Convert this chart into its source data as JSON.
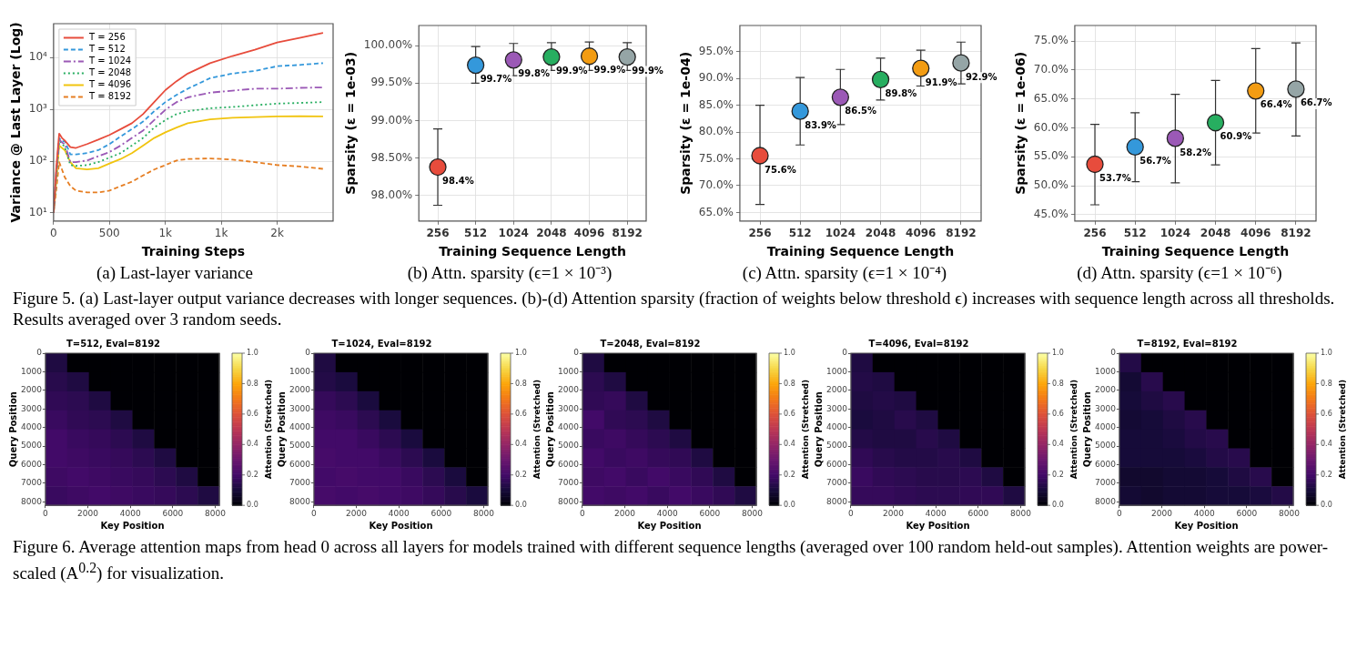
{
  "chart_data": [
    {
      "type": "line",
      "xlabel": "Training Steps",
      "ylabel": "Variance @ Last Layer (Log)",
      "log": "y",
      "grid": true,
      "legend": "top left",
      "annotations": [
        "(a) Last-layer variance"
      ],
      "x": [
        0,
        25,
        50,
        75,
        100,
        150,
        200,
        300,
        400,
        500,
        600,
        700,
        800,
        900,
        1000,
        1100,
        1200,
        1400,
        1600,
        1800,
        2000,
        2200,
        2410
      ],
      "xlim": [
        0,
        2500
      ],
      "xticks": [
        0,
        500,
        {
          "value": 1000,
          "label": "1k"
        },
        {
          "value": 1500,
          "label": "1k"
        },
        {
          "value": 2000,
          "label": "2k"
        }
      ],
      "ylim": [
        7,
        45000
      ],
      "yticks": [
        {
          "value": 10,
          "label": "10¹"
        },
        {
          "value": 100,
          "label": "10²"
        },
        {
          "value": 1000,
          "label": "10³"
        },
        {
          "value": 10000,
          "label": "10⁴"
        }
      ],
      "series": [
        {
          "name": "T = 256",
          "color": "#e74c3c",
          "line_style": "solid",
          "values": [
            10,
            80,
            340,
            280,
            250,
            187,
            180,
            214,
            260,
            320,
            415,
            540,
            810,
            1380,
            2350,
            3500,
            4900,
            7800,
            10700,
            14100,
            19500,
            24000,
            30000
          ]
        },
        {
          "name": "T = 512",
          "color": "#3498db",
          "line_style": "dashed",
          "values": [
            10,
            70,
            280,
            240,
            245,
            135,
            135,
            143,
            163,
            214,
            300,
            415,
            580,
            920,
            1380,
            1900,
            2500,
            4000,
            4900,
            5500,
            6800,
            7200,
            7800
          ]
        },
        {
          "name": "T = 1024",
          "color": "#9b59b6",
          "line_style": "dashdot",
          "values": [
            10,
            60,
            260,
            230,
            214,
            96,
            96,
            103,
            125,
            150,
            200,
            280,
            390,
            620,
            980,
            1380,
            1700,
            2100,
            2300,
            2500,
            2500,
            2600,
            2650
          ]
        },
        {
          "name": "T = 2048",
          "color": "#27ae60",
          "line_style": "dotted",
          "values": [
            10,
            50,
            245,
            220,
            187,
            84,
            81,
            84,
            96,
            117,
            143,
            200,
            280,
            445,
            620,
            810,
            920,
            1050,
            1110,
            1200,
            1290,
            1330,
            1380
          ]
        },
        {
          "name": "T = 4096",
          "color": "#f1c40f",
          "line_style": "solid",
          "values": [
            10,
            45,
            200,
            180,
            163,
            96,
            73,
            69,
            73,
            90,
            110,
            143,
            200,
            280,
            360,
            445,
            540,
            640,
            690,
            710,
            730,
            740,
            730
          ]
        },
        {
          "name": "T = 8192",
          "color": "#e67e22",
          "line_style": "dashed",
          "values": [
            10,
            29,
            96,
            69,
            49,
            33,
            27,
            25,
            25,
            27,
            33,
            40,
            53,
            69,
            84,
            103,
            110,
            113,
            107,
            96,
            84,
            79,
            71
          ]
        }
      ]
    },
    {
      "type": "scatter",
      "xlabel": "Training Sequence Length",
      "ylabel": "Sparsity (ε = 1e-03)",
      "grid": true,
      "annotations": [
        "(b) Attn. sparsity (ϵ=1 × 10⁻³)"
      ],
      "categories": [
        "256",
        "512",
        "1024",
        "2048",
        "4096",
        "8192"
      ],
      "ylim": [
        97.66,
        100.27
      ],
      "yticks": [
        {
          "value": 98,
          "label": "98.00%"
        },
        {
          "value": 98.5,
          "label": "98.50%"
        },
        {
          "value": 99,
          "label": "99.00%"
        },
        {
          "value": 99.5,
          "label": "99.50%"
        },
        {
          "value": 100,
          "label": "100.00%"
        }
      ],
      "values": [
        98.38,
        99.74,
        99.81,
        99.85,
        99.86,
        99.85
      ],
      "colors": [
        "#e74c3c",
        "#3498db",
        "#9b59b6",
        "#27ae60",
        "#f39c12",
        "#95a5a6"
      ],
      "errors": [
        [
          97.87,
          98.89
        ],
        [
          99.5,
          99.99
        ],
        [
          99.6,
          100.03
        ],
        [
          99.67,
          100.04
        ],
        [
          99.67,
          100.05
        ],
        [
          99.67,
          100.04
        ]
      ],
      "value_labels": [
        "98.4%",
        "99.7%",
        "99.8%",
        "99.9%",
        "99.9%",
        "99.9%"
      ]
    },
    {
      "type": "scatter",
      "xlabel": "Training Sequence Length",
      "ylabel": "Sparsity (ε = 1e-04)",
      "grid": true,
      "annotations": [
        "(c) Attn. sparsity (ϵ=1 × 10⁻⁴)"
      ],
      "categories": [
        "256",
        "512",
        "1024",
        "2048",
        "4096",
        "8192"
      ],
      "ylim": [
        63.4,
        99.9
      ],
      "yticks": [
        {
          "value": 65,
          "label": "65.0%"
        },
        {
          "value": 70,
          "label": "70.0%"
        },
        {
          "value": 75,
          "label": "75.0%"
        },
        {
          "value": 80,
          "label": "80.0%"
        },
        {
          "value": 85,
          "label": "85.0%"
        },
        {
          "value": 90,
          "label": "90.0%"
        },
        {
          "value": 95,
          "label": "95.0%"
        }
      ],
      "values": [
        75.6,
        83.9,
        86.5,
        89.8,
        91.9,
        92.9
      ],
      "colors": [
        "#e74c3c",
        "#3498db",
        "#9b59b6",
        "#27ae60",
        "#f39c12",
        "#95a5a6"
      ],
      "errors": [
        [
          66.5,
          85
        ],
        [
          77.6,
          90.2
        ],
        [
          81.4,
          91.7
        ],
        [
          86,
          93.8
        ],
        [
          88.6,
          95.3
        ],
        [
          89,
          96.8
        ]
      ],
      "value_labels": [
        "75.6%",
        "83.9%",
        "86.5%",
        "89.8%",
        "91.9%",
        "92.9%"
      ]
    },
    {
      "type": "scatter",
      "xlabel": "Training Sequence Length",
      "ylabel": "Sparsity (ε = 1e-06)",
      "grid": true,
      "annotations": [
        "(d) Attn. sparsity (ϵ=1 × 10⁻⁶)",
        "Figure 5. (a) Last-layer output variance decreases with longer sequences. (b)-(d) Attention sparsity (fraction of weights below threshold ϵ) increases with sequence length across all thresholds. Results averaged over 3 random seeds."
      ],
      "categories": [
        "256",
        "512",
        "1024",
        "2048",
        "4096",
        "8192"
      ],
      "ylim": [
        43.9,
        77.7
      ],
      "yticks": [
        {
          "value": 45,
          "label": "45.0%"
        },
        {
          "value": 50,
          "label": "50.0%"
        },
        {
          "value": 55,
          "label": "55.0%"
        },
        {
          "value": 60,
          "label": "60.0%"
        },
        {
          "value": 65,
          "label": "65.0%"
        },
        {
          "value": 70,
          "label": "70.0%"
        },
        {
          "value": 75,
          "label": "75.0%"
        }
      ],
      "values": [
        53.7,
        56.7,
        58.2,
        60.9,
        66.4,
        66.7
      ],
      "colors": [
        "#e74c3c",
        "#3498db",
        "#9b59b6",
        "#27ae60",
        "#f39c12",
        "#95a5a6"
      ],
      "errors": [
        [
          46.7,
          60.6
        ],
        [
          50.7,
          62.6
        ],
        [
          50.5,
          65.8
        ],
        [
          53.6,
          68.2
        ],
        [
          59.1,
          73.7
        ],
        [
          58.6,
          74.7
        ]
      ],
      "value_labels": [
        "53.7%",
        "56.7%",
        "58.2%",
        "60.9%",
        "66.4%",
        "66.7%"
      ]
    },
    {
      "type": "heatmap",
      "title": "T=512, Eval=8192",
      "xlabel": "Key Position",
      "ylabel": "Query Position",
      "clabel": "Attention (Stretched)",
      "xlim": [
        0,
        8192
      ],
      "xticks": [
        0,
        2000,
        4000,
        6000,
        8000
      ],
      "ylim": [
        8192,
        0
      ],
      "yticks": [
        0,
        1000,
        2000,
        3000,
        4000,
        5000,
        6000,
        7000,
        8000
      ],
      "clim": [
        0,
        1
      ],
      "cticks": [
        {
          "value": 0,
          "label": "0.0"
        },
        {
          "value": 0.2,
          "label": "0.2"
        },
        {
          "value": 0.4,
          "label": "0.4"
        },
        {
          "value": 0.6,
          "label": "0.6"
        },
        {
          "value": 0.8,
          "label": "0.8"
        },
        {
          "value": 1,
          "label": "1.0"
        }
      ],
      "cells": [
        [
          0.12,
          0,
          0,
          0,
          0,
          0,
          0,
          0
        ],
        [
          0.14,
          0.12,
          0,
          0,
          0,
          0,
          0,
          0
        ],
        [
          0.16,
          0.15,
          0.12,
          0,
          0,
          0,
          0,
          0
        ],
        [
          0.18,
          0.16,
          0.15,
          0.12,
          0,
          0,
          0,
          0
        ],
        [
          0.2,
          0.18,
          0.17,
          0.15,
          0.12,
          0,
          0,
          0
        ],
        [
          0.2,
          0.19,
          0.18,
          0.17,
          0.15,
          0.12,
          0,
          0
        ],
        [
          0.19,
          0.2,
          0.19,
          0.18,
          0.17,
          0.15,
          0.12,
          0
        ],
        [
          0.18,
          0.19,
          0.2,
          0.19,
          0.18,
          0.17,
          0.15,
          0.12
        ]
      ]
    },
    {
      "type": "heatmap",
      "title": "T=1024, Eval=8192",
      "xlabel": "Key Position",
      "ylabel": "Query Position",
      "clabel": "Attention (Stretched)",
      "xlim": [
        0,
        8192
      ],
      "xticks": [
        0,
        2000,
        4000,
        6000,
        8000
      ],
      "ylim": [
        8192,
        0
      ],
      "yticks": [
        0,
        1000,
        2000,
        3000,
        4000,
        5000,
        6000,
        7000,
        8000
      ],
      "clim": [
        0,
        1
      ],
      "cticks": [
        {
          "value": 0,
          "label": "0.0"
        },
        {
          "value": 0.2,
          "label": "0.2"
        },
        {
          "value": 0.4,
          "label": "0.4"
        },
        {
          "value": 0.6,
          "label": "0.6"
        },
        {
          "value": 0.8,
          "label": "0.8"
        },
        {
          "value": 1,
          "label": "1.0"
        }
      ],
      "cells": [
        [
          0.12,
          0,
          0,
          0,
          0,
          0,
          0,
          0
        ],
        [
          0.13,
          0.11,
          0,
          0,
          0,
          0,
          0,
          0
        ],
        [
          0.17,
          0.15,
          0.11,
          0,
          0,
          0,
          0,
          0
        ],
        [
          0.19,
          0.18,
          0.15,
          0.11,
          0,
          0,
          0,
          0
        ],
        [
          0.2,
          0.2,
          0.18,
          0.15,
          0.11,
          0,
          0,
          0
        ],
        [
          0.21,
          0.2,
          0.2,
          0.18,
          0.15,
          0.11,
          0,
          0
        ],
        [
          0.2,
          0.21,
          0.2,
          0.2,
          0.18,
          0.15,
          0.11,
          0
        ],
        [
          0.21,
          0.2,
          0.21,
          0.2,
          0.19,
          0.17,
          0.14,
          0.11
        ]
      ]
    },
    {
      "type": "heatmap",
      "title": "T=2048, Eval=8192",
      "xlabel": "Key Position",
      "ylabel": "Query Position",
      "clabel": "Attention (Stretched)",
      "xlim": [
        0,
        8192
      ],
      "xticks": [
        0,
        2000,
        4000,
        6000,
        8000
      ],
      "ylim": [
        8192,
        0
      ],
      "yticks": [
        0,
        1000,
        2000,
        3000,
        4000,
        5000,
        6000,
        7000,
        8000
      ],
      "clim": [
        0,
        1
      ],
      "cticks": [
        {
          "value": 0,
          "label": "0.0"
        },
        {
          "value": 0.2,
          "label": "0.2"
        },
        {
          "value": 0.4,
          "label": "0.4"
        },
        {
          "value": 0.6,
          "label": "0.6"
        },
        {
          "value": 0.8,
          "label": "0.8"
        },
        {
          "value": 1,
          "label": "1.0"
        }
      ],
      "cells": [
        [
          0.12,
          0,
          0,
          0,
          0,
          0,
          0,
          0
        ],
        [
          0.15,
          0.12,
          0,
          0,
          0,
          0,
          0,
          0
        ],
        [
          0.16,
          0.17,
          0.12,
          0,
          0,
          0,
          0,
          0
        ],
        [
          0.2,
          0.16,
          0.15,
          0.12,
          0,
          0,
          0,
          0
        ],
        [
          0.18,
          0.19,
          0.17,
          0.15,
          0.12,
          0,
          0,
          0
        ],
        [
          0.2,
          0.18,
          0.19,
          0.17,
          0.16,
          0.12,
          0,
          0
        ],
        [
          0.19,
          0.2,
          0.18,
          0.2,
          0.18,
          0.16,
          0.12,
          0
        ],
        [
          0.2,
          0.19,
          0.2,
          0.18,
          0.2,
          0.18,
          0.16,
          0.12
        ]
      ]
    },
    {
      "type": "heatmap",
      "title": "T=4096, Eval=8192",
      "xlabel": "Key Position",
      "ylabel": "Query Position",
      "clabel": "Attention (Stretched)",
      "xlim": [
        0,
        8192
      ],
      "xticks": [
        0,
        2000,
        4000,
        6000,
        8000
      ],
      "ylim": [
        8192,
        0
      ],
      "yticks": [
        0,
        1000,
        2000,
        3000,
        4000,
        5000,
        6000,
        7000,
        8000
      ],
      "clim": [
        0,
        1
      ],
      "cticks": [
        {
          "value": 0,
          "label": "0.0"
        },
        {
          "value": 0.2,
          "label": "0.2"
        },
        {
          "value": 0.4,
          "label": "0.4"
        },
        {
          "value": 0.6,
          "label": "0.6"
        },
        {
          "value": 0.8,
          "label": "0.8"
        },
        {
          "value": 1,
          "label": "1.0"
        }
      ],
      "cells": [
        [
          0.12,
          0,
          0,
          0,
          0,
          0,
          0,
          0
        ],
        [
          0.13,
          0.12,
          0,
          0,
          0,
          0,
          0,
          0
        ],
        [
          0.12,
          0.13,
          0.12,
          0,
          0,
          0,
          0,
          0
        ],
        [
          0.11,
          0.12,
          0.14,
          0.12,
          0,
          0,
          0,
          0
        ],
        [
          0.13,
          0.12,
          0.12,
          0.14,
          0.12,
          0,
          0,
          0
        ],
        [
          0.16,
          0.14,
          0.13,
          0.13,
          0.14,
          0.12,
          0,
          0
        ],
        [
          0.18,
          0.16,
          0.15,
          0.14,
          0.14,
          0.15,
          0.12,
          0
        ],
        [
          0.17,
          0.17,
          0.16,
          0.15,
          0.15,
          0.16,
          0.16,
          0.12
        ]
      ]
    },
    {
      "type": "heatmap",
      "title": "T=8192, Eval=8192",
      "xlabel": "Key Position",
      "ylabel": "Query Position",
      "clabel": "Attention (Stretched)",
      "xlim": [
        0,
        8192
      ],
      "xticks": [
        0,
        2000,
        4000,
        6000,
        8000
      ],
      "ylim": [
        8192,
        0
      ],
      "yticks": [
        0,
        1000,
        2000,
        3000,
        4000,
        5000,
        6000,
        7000,
        8000
      ],
      "clim": [
        0,
        1
      ],
      "cticks": [
        {
          "value": 0,
          "label": "0.0"
        },
        {
          "value": 0.2,
          "label": "0.2"
        },
        {
          "value": 0.4,
          "label": "0.4"
        },
        {
          "value": 0.6,
          "label": "0.6"
        },
        {
          "value": 0.8,
          "label": "0.8"
        },
        {
          "value": 1,
          "label": "1.0"
        }
      ],
      "cells": [
        [
          0.13,
          0,
          0,
          0,
          0,
          0,
          0,
          0
        ],
        [
          0.09,
          0.14,
          0,
          0,
          0,
          0,
          0,
          0
        ],
        [
          0.1,
          0.12,
          0.14,
          0,
          0,
          0,
          0,
          0
        ],
        [
          0.09,
          0.1,
          0.12,
          0.14,
          0,
          0,
          0,
          0
        ],
        [
          0.1,
          0.1,
          0.11,
          0.13,
          0.14,
          0,
          0,
          0
        ],
        [
          0.1,
          0.1,
          0.1,
          0.11,
          0.13,
          0.14,
          0,
          0
        ],
        [
          0.08,
          0.08,
          0.09,
          0.09,
          0.1,
          0.12,
          0.14,
          0
        ],
        [
          0.09,
          0.08,
          0.09,
          0.09,
          0.1,
          0.1,
          0.11,
          0.13
        ]
      ],
      "annotations": [
        "Figure 6. Average attention maps from head 0 across all layers for models trained with different sequence lengths (averaged over 100 random held-out samples). Attention weights are power-scaled (A$^{0.2}$) for visualization."
      ]
    }
  ]
}
